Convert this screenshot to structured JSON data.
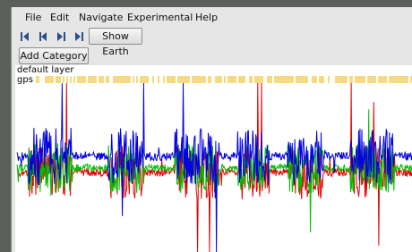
{
  "menu": [
    "File",
    "Edit",
    "Navigate",
    "Experimental",
    "Help"
  ],
  "toolbar": {
    "show_earth": "Show Earth",
    "add_category": "Add Category"
  },
  "layers": [
    "default layer",
    "gps"
  ]
}
